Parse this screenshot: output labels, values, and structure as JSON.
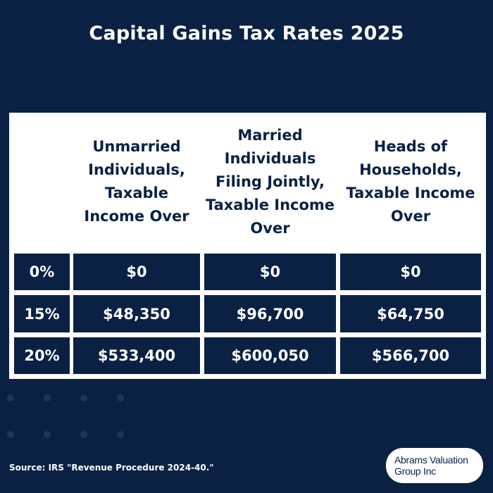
{
  "title": "Capital Gains Tax Rates 2025",
  "table": {
    "headers": [
      "",
      "Unmarried Individuals, Taxable Income Over",
      "Married Individuals Filing Jointly, Taxable Income Over",
      "Heads of Households, Taxable Income Over"
    ],
    "rows": [
      {
        "rate": "0%",
        "values": [
          "$0",
          "$0",
          "$0"
        ]
      },
      {
        "rate": "15%",
        "values": [
          "$48,350",
          "$96,700",
          "$64,750"
        ]
      },
      {
        "rate": "20%",
        "values": [
          "$533,400",
          "$600,050",
          "$566,700"
        ]
      }
    ]
  },
  "source": "Source: IRS \"Revenue Procedure 2024-40.\"",
  "logo": {
    "line1": "Abrams Valuation",
    "line2": "Group Inc"
  },
  "colors": {
    "background": "#0a2144",
    "table_background": "#ffffff",
    "dots": "#173a5c"
  }
}
